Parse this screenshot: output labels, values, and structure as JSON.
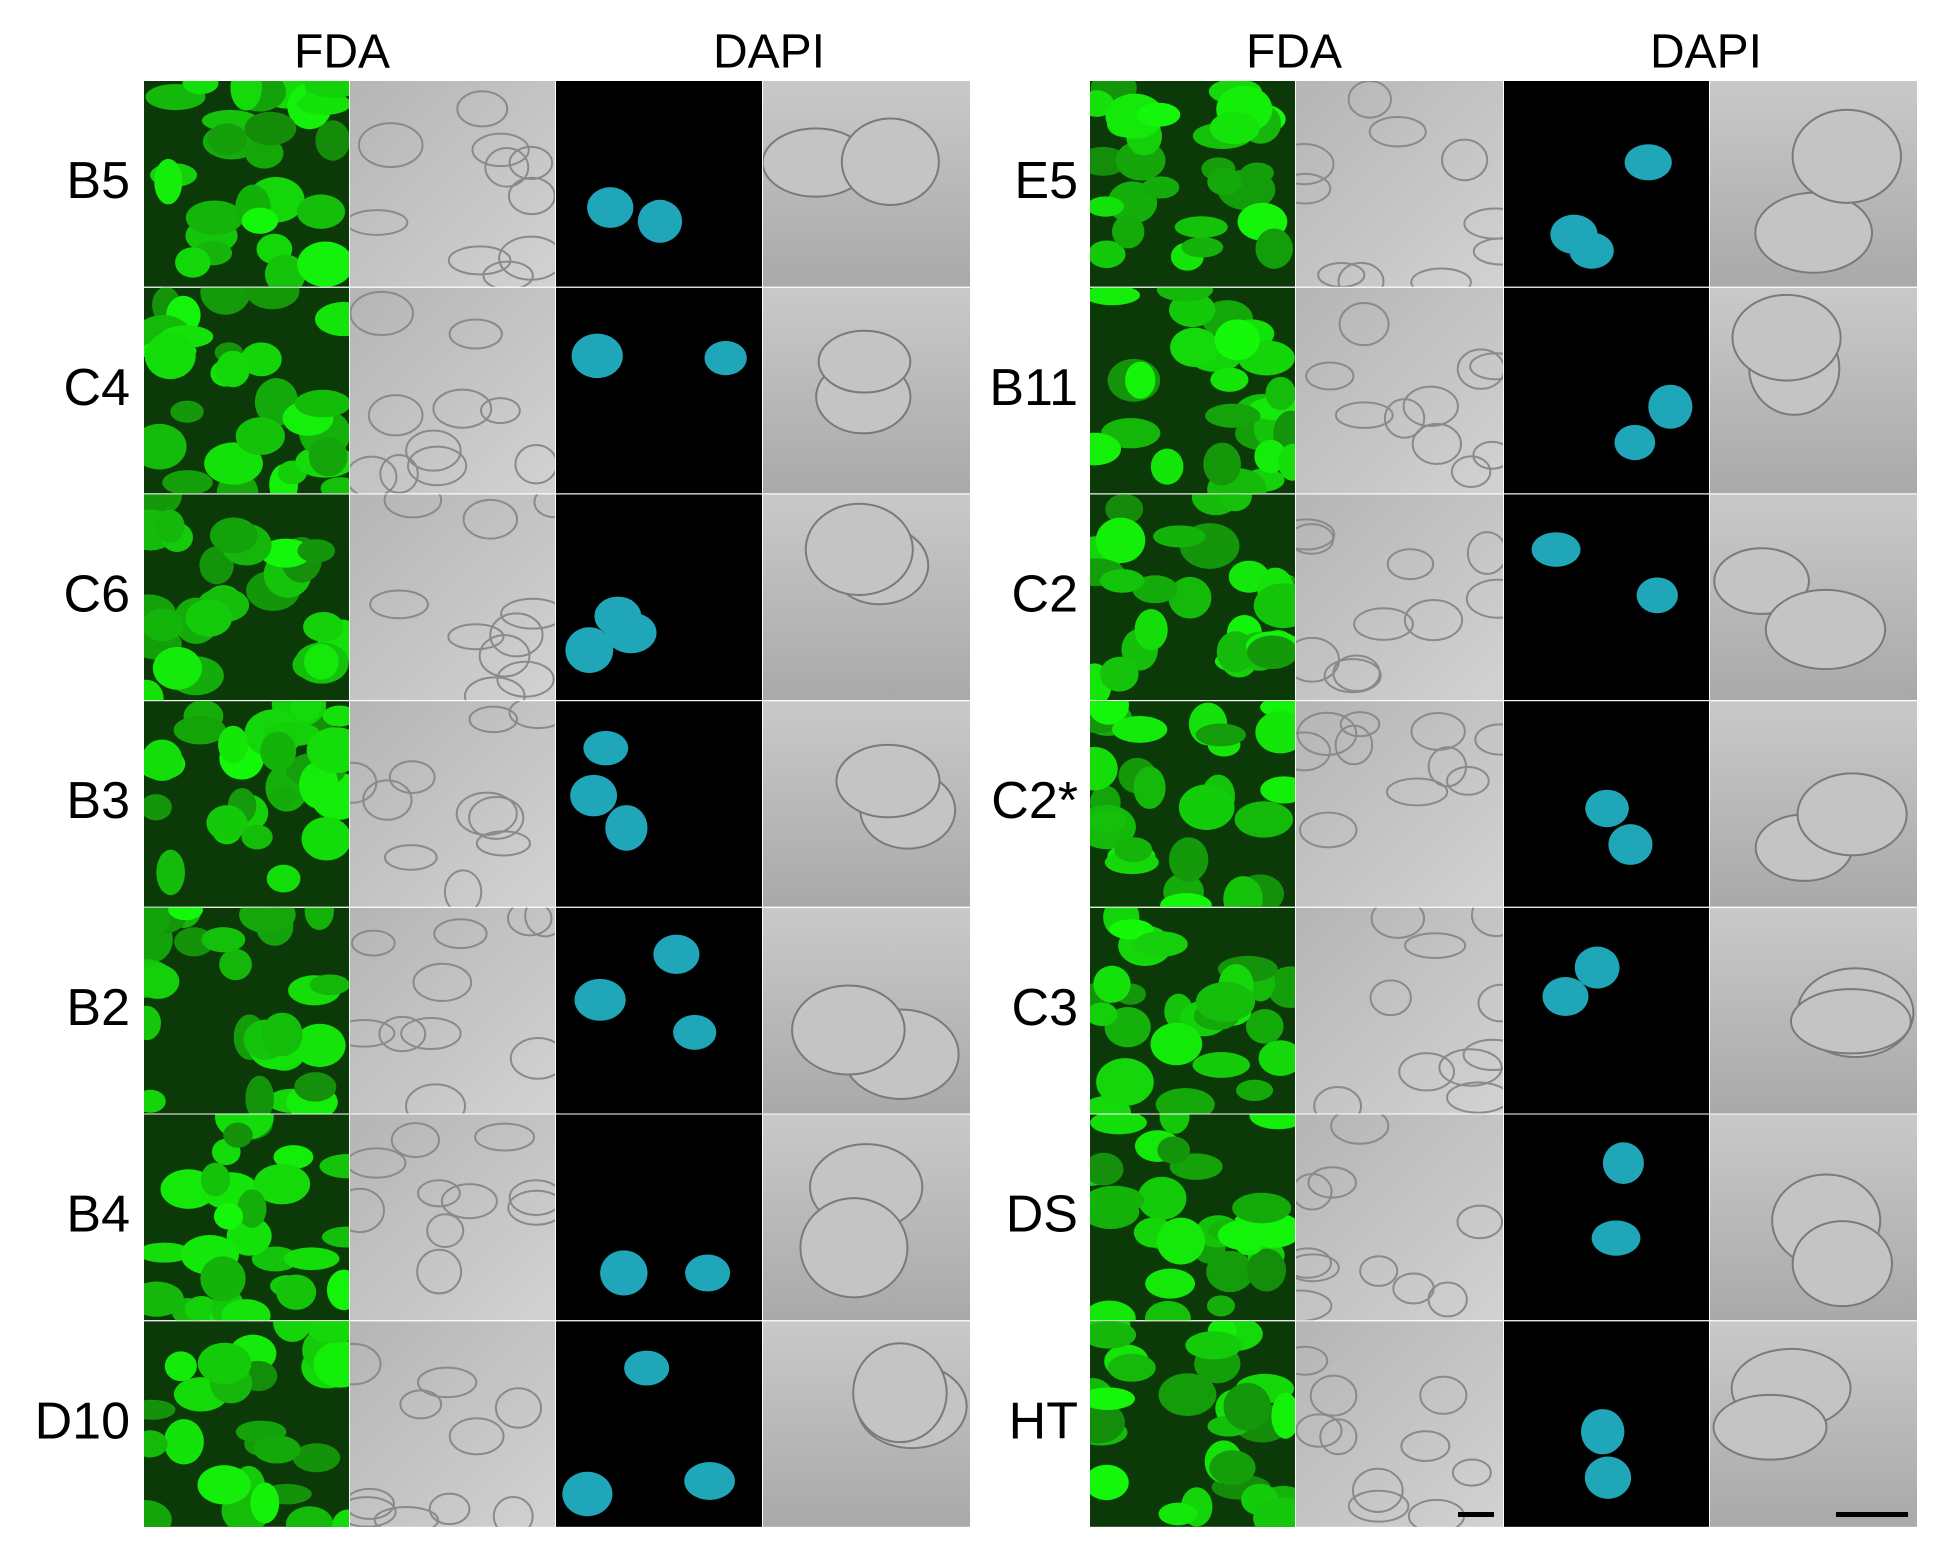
{
  "left": {
    "headers": [
      "FDA",
      "DAPI"
    ],
    "rows": [
      "B5",
      "C4",
      "C6",
      "B3",
      "B2",
      "B4",
      "D10"
    ]
  },
  "right": {
    "headers": [
      "FDA",
      "DAPI"
    ],
    "rows": [
      "E5",
      "B11",
      "C2",
      "C2*",
      "C3",
      "DS",
      "HT"
    ]
  }
}
